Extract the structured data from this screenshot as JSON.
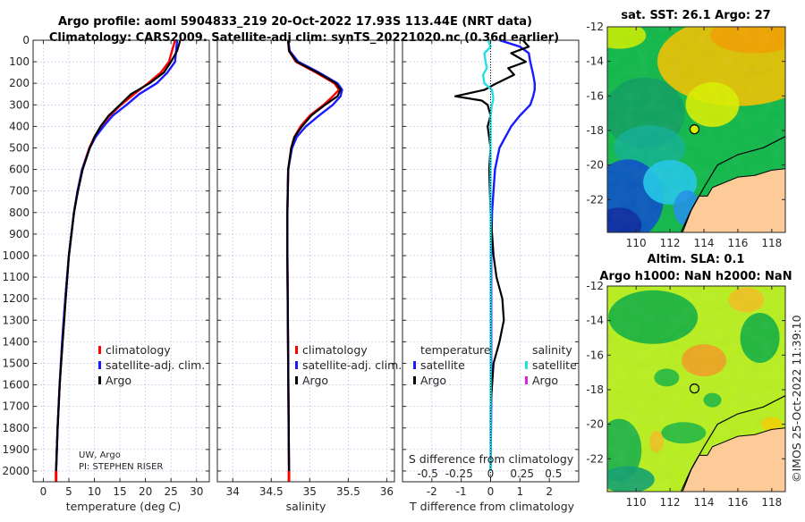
{
  "titles": {
    "line1": "Argo profile: aoml 5904833_219 20-Oct-2022 17.93S 113.44E (NRT data)",
    "line2": "Climatology: CARS2009. Satellite-adj clim: synTS_20221020.nc (0.36d earlier)"
  },
  "credit": {
    "line1": "UW, Argo",
    "line2": "PI: STEPHEN RISER"
  },
  "stamp": "©IMOS 25-Oct-2022 11:39:10",
  "colors": {
    "climatology": "#ff0000",
    "satellite": "#1a1aff",
    "argo": "#000000",
    "sal_satellite": "#22e0e8",
    "sal_argo": "#e020e0",
    "land": "#fccb97"
  },
  "chart_data": [
    {
      "type": "line",
      "id": "temperature",
      "xlabel": "temperature (deg C)",
      "ylabel": "",
      "xlim": [
        -2,
        32.5
      ],
      "ylim": [
        2050,
        0
      ],
      "xticks": [
        0,
        5,
        10,
        15,
        20,
        25,
        30
      ],
      "yticks": [
        0,
        100,
        200,
        300,
        400,
        500,
        600,
        700,
        800,
        900,
        1000,
        1100,
        1200,
        1300,
        1400,
        1500,
        1600,
        1700,
        1800,
        1900,
        2000
      ],
      "grid": true,
      "legend": {
        "placement": "bottom-right",
        "entries": [
          "climatology",
          "satellite-adj. clim.",
          "Argo"
        ]
      },
      "depth": [
        0,
        50,
        100,
        150,
        200,
        250,
        300,
        350,
        400,
        450,
        500,
        600,
        700,
        800,
        1000,
        1200,
        1400,
        1600,
        1800,
        2000
      ],
      "series": [
        {
          "name": "climatology",
          "color": "#ff0000",
          "values": [
            25.8,
            25.2,
            24.6,
            23.0,
            20.5,
            17.8,
            15.2,
            13.0,
            11.3,
            10.0,
            9.0,
            7.6,
            6.7,
            6.0,
            5.0,
            4.3,
            3.7,
            3.2,
            2.8,
            2.5
          ]
        },
        {
          "name": "satellite-adj. clim.",
          "color": "#1a1aff",
          "values": [
            26.2,
            26.0,
            25.8,
            24.3,
            22.2,
            18.8,
            16.3,
            13.6,
            11.8,
            10.2,
            9.1,
            7.6,
            6.7,
            6.0,
            5.0,
            4.3,
            3.7,
            3.2,
            2.8,
            2.5
          ]
        },
        {
          "name": "Argo",
          "color": "#000000",
          "values": [
            26.8,
            26.2,
            25.0,
            23.6,
            20.8,
            17.2,
            15.0,
            12.8,
            11.2,
            10.0,
            9.1,
            7.7,
            6.8,
            6.0,
            5.0,
            4.4,
            3.8,
            3.2,
            2.8,
            2.5
          ]
        }
      ]
    },
    {
      "type": "line",
      "id": "salinity",
      "xlabel": "salinity",
      "xlim": [
        33.8,
        36.1
      ],
      "ylim": [
        2050,
        0
      ],
      "xticks": [
        34,
        34.5,
        35,
        35.5,
        36
      ],
      "grid": true,
      "legend": {
        "placement": "bottom-right",
        "entries": [
          "climatology",
          "satellite-adj. clim.",
          "Argo"
        ]
      },
      "depth": [
        0,
        50,
        100,
        150,
        200,
        230,
        260,
        300,
        350,
        400,
        450,
        500,
        600,
        800,
        1000,
        1500,
        2000
      ],
      "series": [
        {
          "name": "climatology",
          "color": "#ff0000",
          "values": [
            34.72,
            34.73,
            34.82,
            35.08,
            35.32,
            35.38,
            35.3,
            35.18,
            35.0,
            34.88,
            34.8,
            34.76,
            34.72,
            34.71,
            34.71,
            34.72,
            34.73
          ]
        },
        {
          "name": "satellite-adj. clim.",
          "color": "#1a1aff",
          "values": [
            34.72,
            34.74,
            34.85,
            35.12,
            35.36,
            35.42,
            35.4,
            35.3,
            35.12,
            34.95,
            34.83,
            34.77,
            34.72,
            34.71,
            34.71,
            34.72,
            34.73
          ]
        },
        {
          "name": "Argo",
          "color": "#000000",
          "values": [
            34.72,
            34.73,
            34.83,
            35.1,
            35.34,
            35.4,
            35.36,
            35.2,
            35.02,
            34.9,
            34.8,
            34.76,
            34.72,
            34.71,
            34.71,
            34.72,
            34.73
          ]
        }
      ]
    },
    {
      "type": "line",
      "id": "difference",
      "xlabel": "T difference from climatology",
      "x2label": "S difference from climatology",
      "xlim": [
        -3,
        3
      ],
      "x2lim": [
        -0.7,
        0.7
      ],
      "ylim": [
        2050,
        0
      ],
      "xticks": [
        -2,
        -1,
        0,
        1,
        2
      ],
      "x2ticks": [
        -0.5,
        -0.25,
        0,
        0.25,
        0.5
      ],
      "x2ticklabels": [
        "-0.5",
        "-0.25",
        "0",
        "0.25",
        "0.5"
      ],
      "grid": true,
      "legend_left": {
        "title": "temperature",
        "entries": [
          "satellite",
          "Argo"
        ]
      },
      "legend_right": {
        "title": "salinity",
        "entries": [
          "satellite",
          "Argo"
        ]
      },
      "depth": [
        0,
        30,
        60,
        100,
        130,
        160,
        200,
        230,
        260,
        280,
        300,
        350,
        400,
        500,
        600,
        800,
        1000,
        1100,
        1200,
        1300,
        1400,
        1500,
        1700,
        2000
      ],
      "series": [
        {
          "name": "temperature satellite",
          "color": "#1a1aff",
          "values": [
            0.3,
            1.0,
            1.3,
            1.35,
            1.4,
            1.45,
            1.5,
            1.5,
            1.45,
            1.4,
            1.35,
            1.0,
            0.7,
            0.3,
            0.15,
            0.05,
            0.02,
            0.02,
            0.02,
            0.02,
            0.02,
            0.02,
            0.02,
            0.0
          ]
        },
        {
          "name": "temperature Argo",
          "color": "#000000",
          "values": [
            1.1,
            1.3,
            0.7,
            1.2,
            0.6,
            0.8,
            0.2,
            -0.2,
            -1.2,
            -0.3,
            -0.1,
            0.0,
            -0.1,
            0.0,
            -0.05,
            0.0,
            0.1,
            0.2,
            0.4,
            0.45,
            0.3,
            0.1,
            0.0,
            0.0
          ]
        },
        {
          "name": "salinity satellite",
          "color": "#22e0e8",
          "values": [
            -0.02,
            0.0,
            -0.05,
            -0.04,
            -0.03,
            -0.06,
            -0.05,
            0.01,
            0.02,
            0.02,
            0.01,
            0.0,
            0.0,
            0.0,
            0.0,
            0.0,
            0.0,
            0.0,
            0.0,
            0.0,
            0.0,
            0.0,
            0.0,
            0.0
          ]
        }
      ]
    },
    {
      "type": "heatmap",
      "id": "sst-map",
      "title": "sat. SST: 26.1 Argo: 27",
      "xlim": [
        108.3,
        118.8
      ],
      "ylim": [
        -23.9,
        -12
      ],
      "xticks": [
        110,
        112,
        114,
        116,
        118
      ],
      "yticks": [
        -12,
        -14,
        -16,
        -18,
        -20,
        -22
      ],
      "marker": {
        "lon": 113.44,
        "lat": -17.93
      }
    },
    {
      "type": "heatmap",
      "id": "sla-map",
      "title": "Altim. SLA: 0.1",
      "subtitle": "Argo h1000: NaN h2000: NaN",
      "xlim": [
        108.3,
        118.8
      ],
      "ylim": [
        -23.9,
        -12
      ],
      "xticks": [
        110,
        112,
        114,
        116,
        118
      ],
      "yticks": [
        -12,
        -14,
        -16,
        -18,
        -20,
        -22
      ],
      "marker": {
        "lon": 113.44,
        "lat": -17.93
      }
    }
  ]
}
